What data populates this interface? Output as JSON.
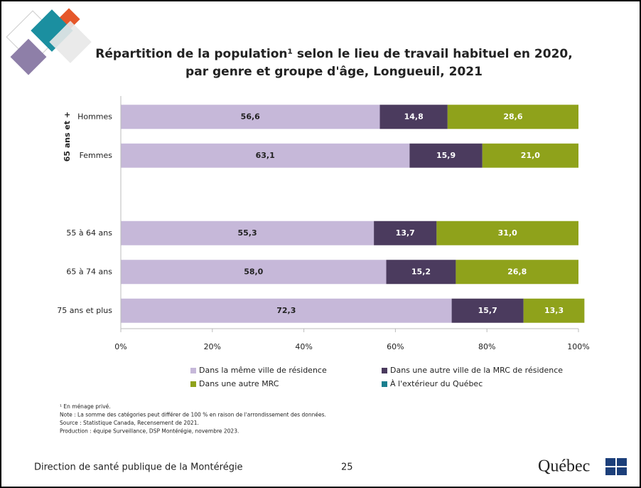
{
  "chart_data": {
    "type": "stacked-barh",
    "title": [
      "Répartition de la population¹ selon le lieu de travail habituel en 2020,",
      "par genre et groupe d'âge, Longueuil, 2021"
    ],
    "group_label": "65 ans et +",
    "categories": [
      "Hommes",
      "Femmes",
      null,
      "55 à 64 ans",
      "65 à 74 ans",
      "75 ans et plus"
    ],
    "series": [
      {
        "name": "Dans la même ville de résidence",
        "color": "#c6b8d9",
        "label_color": "#222222",
        "values": [
          56.6,
          63.1,
          null,
          55.3,
          58.0,
          72.3
        ],
        "value_labels": [
          "56,6",
          "63,1",
          null,
          "55,3",
          "58,0",
          "72,3"
        ]
      },
      {
        "name": "Dans une autre ville de la MRC de résidence",
        "color": "#4b3b5e",
        "label_color": "#ffffff",
        "values": [
          14.8,
          15.9,
          null,
          13.7,
          15.2,
          15.7
        ],
        "value_labels": [
          "14,8",
          "15,9",
          null,
          "13,7",
          "15,2",
          "15,7"
        ]
      },
      {
        "name": "Dans une autre MRC",
        "color": "#8fa21b",
        "label_color": "#ffffff",
        "values": [
          28.6,
          21.0,
          null,
          31.0,
          26.8,
          13.3
        ],
        "value_labels": [
          "28,6",
          "21,0",
          null,
          "31,0",
          "26,8",
          "13,3"
        ]
      },
      {
        "name": "À l'extérieur du Québec",
        "color": "#1b7f8f",
        "label_color": "#ffffff",
        "values": [
          0,
          0,
          null,
          0,
          0,
          0
        ]
      }
    ],
    "xlim": [
      0,
      100
    ],
    "xticks": [
      {
        "value": 0,
        "label": "0%"
      },
      {
        "value": 20,
        "label": "20%"
      },
      {
        "value": 40,
        "label": "40%"
      },
      {
        "value": 60,
        "label": "60%"
      },
      {
        "value": 80,
        "label": "80%"
      },
      {
        "value": 100,
        "label": "100%"
      }
    ]
  },
  "slide": {
    "notes": [
      "¹ En ménage privé.",
      "Note : La somme des catégories peut différer de 100 % en raison de l'arrondissement des données.",
      "Source : Statistique Canada, Recensement de 2021.",
      "Production : équipe Surveillance, DSP Montérégie, novembre 2023."
    ],
    "footer": "Direction de santé publique de la Montérégie",
    "page_number": "25",
    "logo": "Québec"
  }
}
